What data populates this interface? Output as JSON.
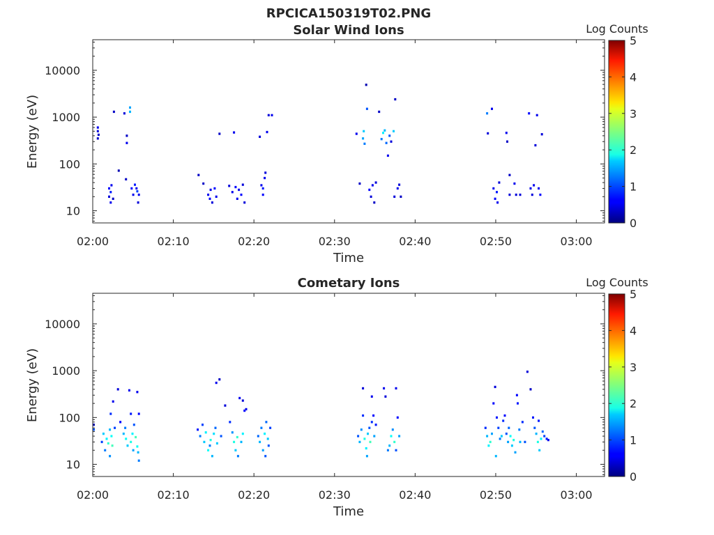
{
  "figure_title": "RPCICA150319T02.PNG",
  "chart_data": [
    {
      "type": "heatmap",
      "title": "Solar Wind Ions",
      "xlabel": "Time",
      "ylabel": "Energy (eV)",
      "x_tick_labels": [
        "02:00",
        "02:10",
        "02:20",
        "02:30",
        "02:40",
        "02:50",
        "03:00"
      ],
      "x_tick_minutes": [
        0,
        10,
        20,
        30,
        40,
        50,
        60
      ],
      "xlim_minutes": [
        0,
        63.5
      ],
      "y_scale": "log",
      "y_tick_labels": [
        "10",
        "100",
        "1000",
        "10000"
      ],
      "y_tick_values": [
        10,
        100,
        1000,
        10000
      ],
      "ylim": [
        5.5,
        45000
      ],
      "colorbar": {
        "label": "Log Counts",
        "ticks": [
          "0",
          "1",
          "2",
          "3",
          "4",
          "5"
        ],
        "range": [
          0,
          5
        ],
        "colormap": "jet"
      },
      "points": [
        [
          0.5,
          500,
          0.4
        ],
        [
          0.5,
          600,
          0.5
        ],
        [
          0.5,
          350,
          0.3
        ],
        [
          0.6,
          420,
          0.3
        ],
        [
          1.9,
          30,
          0.6
        ],
        [
          1.9,
          20,
          0.4
        ],
        [
          2.1,
          15,
          0.5
        ],
        [
          2.1,
          25,
          0.7
        ],
        [
          2.2,
          35,
          0.5
        ],
        [
          2.4,
          18,
          0.3
        ],
        [
          2.5,
          1300,
          0.3
        ],
        [
          3.1,
          72,
          0.2
        ],
        [
          3.8,
          1200,
          0.4
        ],
        [
          4.0,
          47,
          0.3
        ],
        [
          4.1,
          400,
          0.3
        ],
        [
          4.1,
          280,
          0.5
        ],
        [
          4.5,
          1300,
          1.5
        ],
        [
          4.5,
          1600,
          1.4
        ],
        [
          4.7,
          30,
          0.6
        ],
        [
          4.9,
          22,
          0.5
        ],
        [
          5.1,
          36,
          0.7
        ],
        [
          5.3,
          30,
          0.5
        ],
        [
          5.5,
          15,
          0.4
        ],
        [
          5.6,
          22,
          0.5
        ],
        [
          5.4,
          26,
          0.9
        ],
        [
          13.0,
          58,
          0.3
        ],
        [
          13.6,
          38,
          0.3
        ],
        [
          14.2,
          22,
          0.5
        ],
        [
          14.4,
          18,
          0.6
        ],
        [
          14.5,
          28,
          0.5
        ],
        [
          14.7,
          15,
          0.4
        ],
        [
          15.0,
          30,
          0.6
        ],
        [
          15.2,
          20,
          0.5
        ],
        [
          15.6,
          440,
          0.3
        ],
        [
          16.8,
          34,
          0.4
        ],
        [
          17.2,
          25,
          0.5
        ],
        [
          17.4,
          470,
          0.5
        ],
        [
          17.6,
          32,
          0.6
        ],
        [
          17.8,
          18,
          0.5
        ],
        [
          18.0,
          28,
          0.5
        ],
        [
          18.3,
          22,
          0.6
        ],
        [
          18.5,
          36,
          0.4
        ],
        [
          18.7,
          15,
          0.4
        ],
        [
          20.6,
          380,
          0.4
        ],
        [
          20.8,
          35,
          0.5
        ],
        [
          21.0,
          22,
          0.6
        ],
        [
          21.2,
          50,
          0.5
        ],
        [
          21.3,
          65,
          0.4
        ],
        [
          21.5,
          480,
          0.5
        ],
        [
          21.7,
          1100,
          0.4
        ],
        [
          22.1,
          1100,
          0.5
        ],
        [
          21.0,
          30,
          0.7
        ],
        [
          32.6,
          440,
          0.5
        ],
        [
          33.0,
          38,
          0.3
        ],
        [
          33.4,
          350,
          1.4
        ],
        [
          33.5,
          500,
          1.6
        ],
        [
          33.6,
          270,
          1.2
        ],
        [
          33.8,
          4900,
          0.2
        ],
        [
          33.9,
          1500,
          1.0
        ],
        [
          34.2,
          28,
          0.6
        ],
        [
          34.4,
          20,
          0.4
        ],
        [
          34.6,
          35,
          0.5
        ],
        [
          34.8,
          15,
          0.3
        ],
        [
          35.0,
          40,
          0.4
        ],
        [
          35.4,
          1300,
          0.3
        ],
        [
          35.7,
          340,
          1.2
        ],
        [
          35.9,
          460,
          1.8
        ],
        [
          36.1,
          520,
          1.5
        ],
        [
          36.3,
          280,
          1.1
        ],
        [
          36.5,
          150,
          0.5
        ],
        [
          36.7,
          400,
          1.0
        ],
        [
          36.9,
          300,
          0.4
        ],
        [
          37.2,
          500,
          1.6
        ],
        [
          37.4,
          2400,
          0.3
        ],
        [
          37.3,
          20,
          0.4
        ],
        [
          37.7,
          30,
          0.5
        ],
        [
          37.9,
          36,
          0.4
        ],
        [
          38.1,
          20,
          0.3
        ],
        [
          48.8,
          1200,
          1.2
        ],
        [
          48.9,
          450,
          0.4
        ],
        [
          49.4,
          1500,
          0.5
        ],
        [
          49.6,
          30,
          0.5
        ],
        [
          49.8,
          18,
          0.6
        ],
        [
          50.0,
          25,
          0.7
        ],
        [
          50.1,
          15,
          0.5
        ],
        [
          50.3,
          40,
          0.4
        ],
        [
          51.2,
          460,
          0.5
        ],
        [
          51.3,
          300,
          0.3
        ],
        [
          51.6,
          22,
          0.4
        ],
        [
          51.6,
          58,
          0.3
        ],
        [
          52.2,
          38,
          0.5
        ],
        [
          52.4,
          22,
          0.4
        ],
        [
          52.9,
          22,
          0.4
        ],
        [
          54.0,
          1200,
          0.6
        ],
        [
          54.2,
          30,
          0.5
        ],
        [
          54.4,
          22,
          0.4
        ],
        [
          54.8,
          250,
          0.4
        ],
        [
          55.0,
          1100,
          0.5
        ],
        [
          55.2,
          30,
          0.5
        ],
        [
          55.4,
          22,
          0.6
        ],
        [
          55.6,
          430,
          0.4
        ],
        [
          54.6,
          35,
          0.5
        ]
      ]
    },
    {
      "type": "heatmap",
      "title": "Cometary Ions",
      "xlabel": "Time",
      "ylabel": "Energy (eV)",
      "x_tick_labels": [
        "02:00",
        "02:10",
        "02:20",
        "02:30",
        "02:40",
        "02:50",
        "03:00"
      ],
      "x_tick_minutes": [
        0,
        10,
        20,
        30,
        40,
        50,
        60
      ],
      "xlim_minutes": [
        0,
        63.5
      ],
      "y_scale": "log",
      "y_tick_labels": [
        "10",
        "100",
        "1000",
        "10000"
      ],
      "y_tick_values": [
        10,
        100,
        1000,
        10000
      ],
      "ylim": [
        5.5,
        45000
      ],
      "colorbar": {
        "label": "Log Counts",
        "ticks": [
          "0",
          "1",
          "2",
          "3",
          "4",
          "5"
        ],
        "range": [
          0,
          5
        ],
        "colormap": "jet"
      },
      "points": [
        [
          0.0,
          55,
          1.0
        ],
        [
          0.0,
          70,
          0.6
        ],
        [
          1.0,
          30,
          0.9
        ],
        [
          1.2,
          45,
          1.6
        ],
        [
          1.4,
          20,
          1.2
        ],
        [
          1.6,
          35,
          1.8
        ],
        [
          1.8,
          28,
          2.1
        ],
        [
          2.0,
          15,
          1.3
        ],
        [
          2.0,
          55,
          1.5
        ],
        [
          2.1,
          120,
          0.8
        ],
        [
          2.2,
          40,
          1.9
        ],
        [
          2.3,
          25,
          2.2
        ],
        [
          2.4,
          220,
          0.5
        ],
        [
          2.6,
          60,
          0.9
        ],
        [
          3.0,
          400,
          0.4
        ],
        [
          3.3,
          80,
          0.6
        ],
        [
          3.7,
          45,
          1.5
        ],
        [
          3.9,
          60,
          1.2
        ],
        [
          4.0,
          35,
          1.9
        ],
        [
          4.2,
          25,
          1.6
        ],
        [
          4.4,
          380,
          0.5
        ],
        [
          4.6,
          120,
          0.7
        ],
        [
          4.6,
          30,
          2.0
        ],
        [
          4.8,
          45,
          1.8
        ],
        [
          4.9,
          20,
          1.4
        ],
        [
          5.0,
          70,
          1.0
        ],
        [
          5.2,
          38,
          2.2
        ],
        [
          5.4,
          24,
          1.9
        ],
        [
          5.5,
          18,
          1.5
        ],
        [
          5.6,
          12,
          1.2
        ],
        [
          5.4,
          350,
          0.5
        ],
        [
          5.6,
          120,
          0.6
        ],
        [
          12.9,
          55,
          0.7
        ],
        [
          13.2,
          40,
          1.2
        ],
        [
          13.5,
          70,
          0.9
        ],
        [
          13.7,
          30,
          1.6
        ],
        [
          13.9,
          48,
          1.8
        ],
        [
          14.2,
          20,
          1.9
        ],
        [
          14.4,
          25,
          1.2
        ],
        [
          14.5,
          33,
          2.0
        ],
        [
          14.7,
          15,
          1.5
        ],
        [
          14.9,
          45,
          1.7
        ],
        [
          15.1,
          60,
          1.1
        ],
        [
          15.2,
          550,
          0.5
        ],
        [
          15.6,
          650,
          0.3
        ],
        [
          15.3,
          28,
          1.6
        ],
        [
          15.8,
          40,
          1.0
        ],
        [
          16.3,
          180,
          0.4
        ],
        [
          16.9,
          80,
          0.8
        ],
        [
          17.2,
          48,
          1.3
        ],
        [
          17.4,
          30,
          2.0
        ],
        [
          17.6,
          20,
          1.6
        ],
        [
          17.8,
          38,
          2.1
        ],
        [
          17.9,
          15,
          1.2
        ],
        [
          18.1,
          260,
          0.5
        ],
        [
          18.3,
          30,
          1.5
        ],
        [
          18.5,
          45,
          1.8
        ],
        [
          18.7,
          140,
          0.6
        ],
        [
          18.9,
          150,
          0.5
        ],
        [
          18.5,
          230,
          0.4
        ],
        [
          20.4,
          40,
          1.1
        ],
        [
          20.6,
          30,
          1.5
        ],
        [
          20.8,
          60,
          1.2
        ],
        [
          21.0,
          20,
          1.4
        ],
        [
          21.2,
          45,
          1.8
        ],
        [
          21.4,
          80,
          1.1
        ],
        [
          21.6,
          35,
          1.6
        ],
        [
          21.7,
          25,
          1.0
        ],
        [
          21.9,
          60,
          0.9
        ],
        [
          21.3,
          15,
          1.0
        ],
        [
          32.8,
          40,
          1.0
        ],
        [
          33.0,
          30,
          1.5
        ],
        [
          33.2,
          55,
          1.3
        ],
        [
          33.4,
          420,
          0.4
        ],
        [
          33.4,
          110,
          0.8
        ],
        [
          33.6,
          35,
          2.0
        ],
        [
          33.8,
          22,
          1.8
        ],
        [
          33.9,
          15,
          1.4
        ],
        [
          34.0,
          45,
          1.6
        ],
        [
          34.2,
          60,
          1.0
        ],
        [
          34.3,
          30,
          2.2
        ],
        [
          34.5,
          80,
          0.8
        ],
        [
          34.7,
          110,
          0.6
        ],
        [
          34.8,
          40,
          1.4
        ],
        [
          34.5,
          280,
          0.5
        ],
        [
          35.0,
          70,
          0.7
        ],
        [
          36.0,
          420,
          0.5
        ],
        [
          36.2,
          280,
          0.4
        ],
        [
          36.5,
          20,
          1.2
        ],
        [
          36.7,
          25,
          1.5
        ],
        [
          36.9,
          40,
          1.9
        ],
        [
          37.1,
          55,
          1.3
        ],
        [
          37.3,
          30,
          2.1
        ],
        [
          37.5,
          420,
          0.5
        ],
        [
          37.7,
          100,
          0.6
        ],
        [
          37.9,
          40,
          1.4
        ],
        [
          37.5,
          20,
          1.0
        ],
        [
          48.6,
          60,
          0.8
        ],
        [
          48.8,
          40,
          1.5
        ],
        [
          49.0,
          25,
          1.8
        ],
        [
          49.2,
          30,
          2.1
        ],
        [
          49.4,
          45,
          1.4
        ],
        [
          49.6,
          200,
          0.6
        ],
        [
          49.8,
          450,
          0.4
        ],
        [
          49.9,
          15,
          1.5
        ],
        [
          50.0,
          100,
          0.7
        ],
        [
          50.2,
          60,
          0.9
        ],
        [
          50.4,
          35,
          1.2
        ],
        [
          50.6,
          40,
          1.6
        ],
        [
          50.8,
          85,
          0.8
        ],
        [
          51.0,
          110,
          0.6
        ],
        [
          51.2,
          45,
          1.0
        ],
        [
          51.4,
          30,
          1.4
        ],
        [
          51.5,
          60,
          1.1
        ],
        [
          51.7,
          40,
          1.9
        ],
        [
          51.9,
          25,
          1.6
        ],
        [
          52.1,
          33,
          2.0
        ],
        [
          52.3,
          18,
          1.4
        ],
        [
          52.5,
          300,
          0.6
        ],
        [
          52.6,
          200,
          0.7
        ],
        [
          52.8,
          55,
          1.2
        ],
        [
          52.9,
          30,
          1.5
        ],
        [
          53.2,
          80,
          0.8
        ],
        [
          53.5,
          30,
          1.0
        ],
        [
          53.8,
          950,
          0.4
        ],
        [
          54.2,
          400,
          0.3
        ],
        [
          54.5,
          100,
          0.7
        ],
        [
          54.7,
          60,
          1.0
        ],
        [
          54.9,
          45,
          1.5
        ],
        [
          55.1,
          30,
          2.0
        ],
        [
          55.3,
          20,
          1.6
        ],
        [
          55.5,
          35,
          1.8
        ],
        [
          55.7,
          50,
          1.1
        ],
        [
          55.9,
          40,
          0.9
        ],
        [
          56.2,
          35,
          0.7
        ],
        [
          56.4,
          33,
          0.5
        ],
        [
          55.2,
          85,
          0.7
        ]
      ]
    }
  ]
}
